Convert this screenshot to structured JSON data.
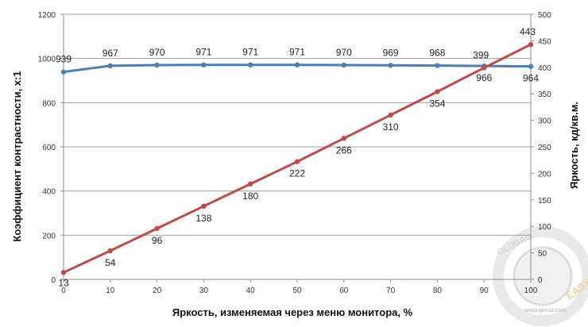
{
  "chart_data": {
    "type": "line",
    "x": [
      0,
      10,
      20,
      30,
      40,
      50,
      60,
      70,
      80,
      90,
      100
    ],
    "xlabel": "Яркость, изменяемая через меню монитора, %",
    "ylabel_left": "Коэффициент контрастности, x:1",
    "ylabel_right": "Яркость, кд/кв.м.",
    "ylim_left": [
      0,
      1200
    ],
    "ylim_right": [
      0,
      500
    ],
    "y_ticks_left": [
      "0",
      "200",
      "400",
      "600",
      "800",
      "1000",
      "1200"
    ],
    "y_ticks_right": [
      "0",
      "50",
      "100",
      "150",
      "200",
      "250",
      "300",
      "350",
      "400",
      "450",
      "500"
    ],
    "x_ticks": [
      "0",
      "10",
      "20",
      "30",
      "40",
      "50",
      "60",
      "70",
      "80",
      "90",
      "100"
    ],
    "grid": "horizontal",
    "legend": "none",
    "series": [
      {
        "axis": "left",
        "color": "#4a7ebb",
        "values": [
          939,
          967,
          970,
          971,
          971,
          971,
          970,
          969,
          968,
          966,
          964
        ],
        "labels": [
          "939",
          "967",
          "970",
          "971",
          "971",
          "971",
          "970",
          "969",
          "968",
          "966",
          "964"
        ]
      },
      {
        "axis": "right",
        "color": "#be4b48",
        "values": [
          13,
          54,
          96,
          138,
          180,
          222,
          266,
          310,
          354,
          399,
          443
        ],
        "labels": [
          "13",
          "54",
          "96",
          "138",
          "180",
          "222",
          "266",
          "310",
          "354",
          "399",
          "443"
        ]
      }
    ]
  },
  "watermark": {
    "top_text": "GLOBAL",
    "side_text": "EASY",
    "url": "www.gecid.com",
    "colors": {
      "ring": "#c9c9c9",
      "text": "#cfcfcf",
      "accent": "#e8c98a"
    }
  }
}
